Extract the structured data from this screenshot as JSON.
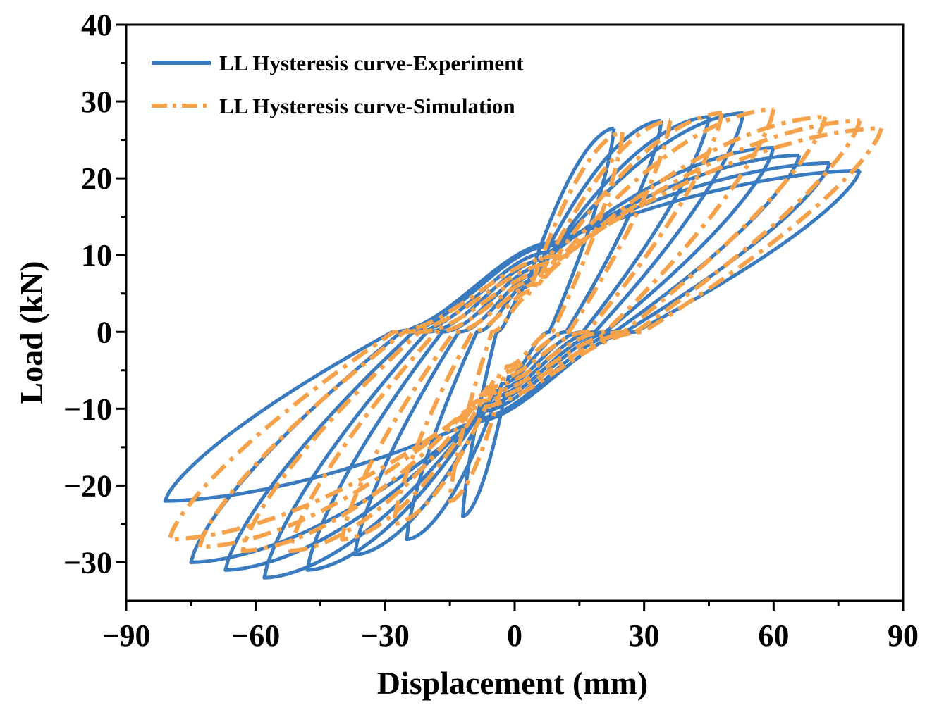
{
  "chart_data": {
    "type": "line",
    "title": "",
    "xlabel": "Displacement (mm)",
    "ylabel": "Load (kN)",
    "xlim": [
      -90,
      90
    ],
    "ylim": [
      -35,
      40
    ],
    "xticks": [
      -90,
      -60,
      -30,
      0,
      30,
      60,
      90
    ],
    "yticks": [
      -30,
      -20,
      -10,
      0,
      10,
      20,
      30,
      40
    ],
    "xtick_labels": [
      "−90",
      "−60",
      "−30",
      "0",
      "30",
      "60",
      "90"
    ],
    "ytick_labels": [
      "−30",
      "−20",
      "−10",
      "0",
      "10",
      "20",
      "30",
      "40"
    ],
    "legend_position": "top-left",
    "series": [
      {
        "name": "LL Hysteresis curve-Experiment",
        "color": "#3a7bbf",
        "style": "solid",
        "cycles": [
          {
            "dpos": 23,
            "fpos": 26.5,
            "dneg": -12,
            "fneg": -24,
            "ro": 6.5
          },
          {
            "dpos": 34,
            "fpos": 27.5,
            "dneg": -25,
            "fneg": -27,
            "ro": 7.5
          },
          {
            "dpos": 45,
            "fpos": 28,
            "dneg": -37,
            "fneg": -29,
            "ro": 8.5
          },
          {
            "dpos": 53,
            "fpos": 28.5,
            "dneg": -48,
            "fneg": -31,
            "ro": 9.5
          },
          {
            "dpos": 60,
            "fpos": 24,
            "dneg": -58,
            "fneg": -32,
            "ro": 10.5
          },
          {
            "dpos": 66,
            "fpos": 23,
            "dneg": -67,
            "fneg": -31,
            "ro": 11.5
          },
          {
            "dpos": 73,
            "fpos": 22,
            "dneg": -75,
            "fneg": -30,
            "ro": 12.5
          },
          {
            "dpos": 80,
            "fpos": 21,
            "dneg": -81,
            "fneg": -22,
            "ro": 13
          }
        ]
      },
      {
        "name": "LL Hysteresis curve-Simulation",
        "color": "#f5a24a",
        "style": "dash-dot",
        "cycles": [
          {
            "dpos": 25,
            "fpos": 26,
            "dneg": -15,
            "fneg": -22,
            "ro": 5
          },
          {
            "dpos": 36,
            "fpos": 27.5,
            "dneg": -28,
            "fneg": -25,
            "ro": 6
          },
          {
            "dpos": 48,
            "fpos": 28.5,
            "dneg": -40,
            "fneg": -27,
            "ro": 7
          },
          {
            "dpos": 60,
            "fpos": 29,
            "dneg": -52,
            "fneg": -28.5,
            "ro": 8
          },
          {
            "dpos": 72,
            "fpos": 28,
            "dneg": -63,
            "fneg": -28.5,
            "ro": 9
          },
          {
            "dpos": 80,
            "fpos": 27.5,
            "dneg": -73,
            "fneg": -28,
            "ro": 10
          },
          {
            "dpos": 85,
            "fpos": 26.5,
            "dneg": -80,
            "fneg": -27,
            "ro": 11
          }
        ]
      }
    ]
  }
}
